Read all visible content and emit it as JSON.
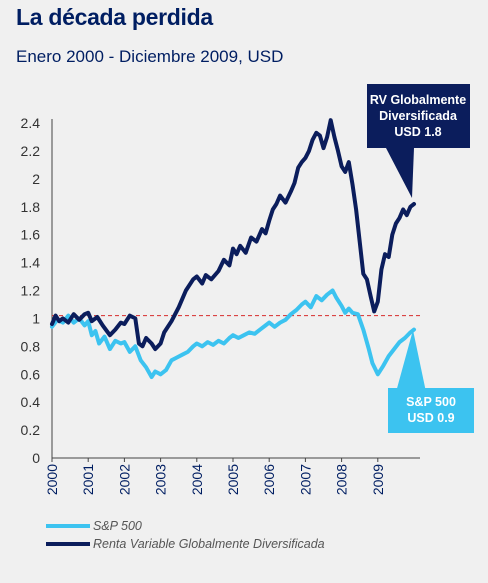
{
  "title": "La década perdida",
  "subtitle": "Enero 2000 - Diciembre 2009, USD",
  "callouts": {
    "rv": [
      "RV Globalmente",
      "Diversificada",
      "USD 1.8"
    ],
    "sp": [
      "S&P 500",
      "USD 0.9"
    ]
  },
  "chart_data": {
    "type": "line",
    "ylim": [
      0,
      2.4
    ],
    "yticks": [
      "0",
      "0.2",
      "0.4",
      "0.6",
      "0.8",
      "1",
      "1.2",
      "1.4",
      "1.6",
      "1.8",
      "2",
      "2.2",
      "2.4"
    ],
    "xlim": [
      2000,
      2010
    ],
    "xticks": [
      "2000",
      "2001",
      "2002",
      "2003",
      "2004",
      "2005",
      "2006",
      "2007",
      "2008",
      "2009"
    ],
    "reference_line": {
      "y": 1.02,
      "style": "dashed",
      "color": "#d62b2b"
    },
    "grid": false,
    "legend_position": "bottom-left",
    "series": [
      {
        "name": "S&P 500",
        "color": "#3cc3f0",
        "x": [
          2000.0,
          2000.15,
          2000.3,
          2000.45,
          2000.6,
          2000.75,
          2000.9,
          2001.0,
          2001.1,
          2001.2,
          2001.3,
          2001.45,
          2001.6,
          2001.75,
          2001.9,
          2002.0,
          2002.15,
          2002.3,
          2002.45,
          2002.6,
          2002.75,
          2002.85,
          2003.0,
          2003.15,
          2003.3,
          2003.45,
          2003.6,
          2003.75,
          2003.9,
          2004.0,
          2004.15,
          2004.3,
          2004.45,
          2004.6,
          2004.75,
          2004.9,
          2005.0,
          2005.15,
          2005.3,
          2005.45,
          2005.6,
          2005.75,
          2005.9,
          2006.0,
          2006.15,
          2006.3,
          2006.45,
          2006.6,
          2006.75,
          2006.9,
          2007.0,
          2007.15,
          2007.3,
          2007.45,
          2007.6,
          2007.75,
          2007.85,
          2008.0,
          2008.1,
          2008.2,
          2008.3,
          2008.45,
          2008.6,
          2008.75,
          2008.85,
          2009.0,
          2009.15,
          2009.3,
          2009.45,
          2009.6,
          2009.75,
          2009.9,
          2010.0
        ],
        "y": [
          0.94,
          0.99,
          0.97,
          1.02,
          0.97,
          1.0,
          0.95,
          0.98,
          0.88,
          0.91,
          0.82,
          0.87,
          0.78,
          0.84,
          0.82,
          0.83,
          0.76,
          0.8,
          0.7,
          0.65,
          0.58,
          0.62,
          0.6,
          0.63,
          0.7,
          0.72,
          0.74,
          0.76,
          0.8,
          0.82,
          0.8,
          0.83,
          0.81,
          0.84,
          0.82,
          0.86,
          0.88,
          0.86,
          0.88,
          0.9,
          0.89,
          0.92,
          0.95,
          0.97,
          0.94,
          0.97,
          0.99,
          1.03,
          1.06,
          1.1,
          1.12,
          1.08,
          1.16,
          1.13,
          1.17,
          1.2,
          1.15,
          1.09,
          1.04,
          1.07,
          1.04,
          1.03,
          0.92,
          0.78,
          0.68,
          0.6,
          0.66,
          0.73,
          0.78,
          0.83,
          0.86,
          0.9,
          0.92
        ]
      },
      {
        "name": "Renta Variable Globalmente Diversificada",
        "color": "#0b1d5c",
        "x": [
          2000.0,
          2000.1,
          2000.2,
          2000.3,
          2000.45,
          2000.6,
          2000.75,
          2000.9,
          2001.0,
          2001.1,
          2001.25,
          2001.4,
          2001.6,
          2001.75,
          2001.9,
          2002.0,
          2002.15,
          2002.3,
          2002.4,
          2002.5,
          2002.6,
          2002.75,
          2002.85,
          2003.0,
          2003.1,
          2003.3,
          2003.5,
          2003.7,
          2003.9,
          2004.0,
          2004.15,
          2004.25,
          2004.4,
          2004.6,
          2004.75,
          2004.9,
          2005.0,
          2005.1,
          2005.2,
          2005.35,
          2005.5,
          2005.65,
          2005.8,
          2005.9,
          2006.0,
          2006.1,
          2006.2,
          2006.3,
          2006.45,
          2006.6,
          2006.7,
          2006.8,
          2006.9,
          2007.0,
          2007.1,
          2007.2,
          2007.3,
          2007.4,
          2007.5,
          2007.6,
          2007.7,
          2007.8,
          2007.9,
          2008.0,
          2008.1,
          2008.2,
          2008.3,
          2008.4,
          2008.5,
          2008.6,
          2008.7,
          2008.8,
          2008.9,
          2009.0,
          2009.1,
          2009.2,
          2009.3,
          2009.4,
          2009.5,
          2009.6,
          2009.7,
          2009.8,
          2009.9,
          2010.0
        ],
        "y": [
          0.96,
          1.02,
          0.98,
          1.0,
          0.97,
          1.03,
          0.99,
          1.03,
          1.04,
          0.98,
          1.01,
          0.95,
          0.88,
          0.92,
          0.97,
          0.96,
          1.02,
          1.0,
          0.82,
          0.8,
          0.86,
          0.82,
          0.78,
          0.82,
          0.9,
          0.98,
          1.08,
          1.2,
          1.28,
          1.3,
          1.25,
          1.31,
          1.28,
          1.34,
          1.42,
          1.38,
          1.5,
          1.46,
          1.52,
          1.47,
          1.58,
          1.55,
          1.64,
          1.61,
          1.7,
          1.78,
          1.82,
          1.88,
          1.83,
          1.91,
          1.97,
          2.08,
          2.12,
          2.15,
          2.2,
          2.28,
          2.33,
          2.31,
          2.22,
          2.3,
          2.42,
          2.3,
          2.2,
          2.09,
          2.05,
          2.12,
          1.96,
          1.78,
          1.55,
          1.32,
          1.28,
          1.16,
          1.05,
          1.12,
          1.35,
          1.46,
          1.44,
          1.6,
          1.68,
          1.72,
          1.78,
          1.74,
          1.8,
          1.82
        ]
      }
    ]
  }
}
